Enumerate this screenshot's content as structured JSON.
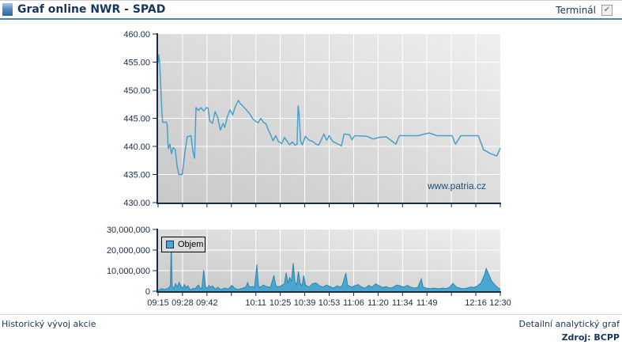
{
  "header": {
    "title": "Graf online NWR - SPAD",
    "terminal_label": "Terminál",
    "terminal_checked": true,
    "check_glyph": "✔"
  },
  "footer": {
    "left_link": "Historický vývoj akcie",
    "right_link": "Detailní analytický graf",
    "source_label": "Zdroj: BCPP"
  },
  "colors": {
    "navy_text": "#17365d",
    "axis": "#1b2b45",
    "header_rule": "#4e87ae",
    "price_line": "#4ba0c8",
    "volume_fill": "#4aa5cf",
    "volume_stroke": "#2d86b2",
    "plot_bg_dark": "#c8c8c8",
    "plot_bg_light": "#efefef",
    "watermark_color": "#1e4d75",
    "gridline": "#ffffff"
  },
  "chart_data": [
    {
      "type": "line",
      "title": "",
      "xlim": [
        0,
        195
      ],
      "ylim": [
        430,
        460
      ],
      "x_tick_count": 15,
      "y_ticks": [
        460,
        455,
        450,
        445,
        440,
        435,
        430
      ],
      "y_tick_labels": [
        "460.00",
        "455.00",
        "450.00",
        "445.00",
        "440.00",
        "435.00",
        "430.00"
      ],
      "grid": true,
      "legend_position": "none",
      "watermark": "www.patria.cz",
      "series": [
        {
          "color": "#4ba0c8",
          "points": [
            [
              0,
              454.8
            ],
            [
              0.4,
              456.3
            ],
            [
              0.9,
              455.0
            ],
            [
              1.4,
              451.5
            ],
            [
              2.2,
              446.0
            ],
            [
              2.6,
              444.3
            ],
            [
              4.8,
              444.3
            ],
            [
              5.2,
              443.9
            ],
            [
              5.8,
              439.6
            ],
            [
              6.8,
              440.4
            ],
            [
              7.6,
              438.7
            ],
            [
              8.6,
              439.8
            ],
            [
              9.8,
              439.4
            ],
            [
              10.8,
              436.6
            ],
            [
              11.8,
              435.0
            ],
            [
              13.8,
              435.0
            ],
            [
              15.2,
              438.8
            ],
            [
              16.6,
              441.7
            ],
            [
              18.8,
              441.9
            ],
            [
              19.8,
              439.2
            ],
            [
              20.8,
              437.9
            ],
            [
              21.6,
              446.9
            ],
            [
              23,
              446.4
            ],
            [
              24.5,
              446.9
            ],
            [
              26,
              446.3
            ],
            [
              27.5,
              446.9
            ],
            [
              28.5,
              446.8
            ],
            [
              29.5,
              444.5
            ],
            [
              31,
              444.1
            ],
            [
              32.5,
              446.2
            ],
            [
              34,
              445.1
            ],
            [
              35.5,
              442.9
            ],
            [
              37,
              444.1
            ],
            [
              38,
              443.4
            ],
            [
              39.5,
              445.3
            ],
            [
              41,
              446.5
            ],
            [
              42.5,
              445.6
            ],
            [
              44,
              447.1
            ],
            [
              45.8,
              448.2
            ],
            [
              46.8,
              447.6
            ],
            [
              48,
              447.3
            ],
            [
              50,
              446.6
            ],
            [
              52,
              445.9
            ],
            [
              54,
              444.9
            ],
            [
              55.5,
              444.5
            ],
            [
              57,
              444.2
            ],
            [
              58.5,
              445.0
            ],
            [
              60,
              444.3
            ],
            [
              61.5,
              444.0
            ],
            [
              63,
              442.8
            ],
            [
              64,
              442.2
            ],
            [
              65.5,
              441.0
            ],
            [
              67,
              441.9
            ],
            [
              68.5,
              440.9
            ],
            [
              70.5,
              440.5
            ],
            [
              72,
              441.6
            ],
            [
              73.5,
              440.9
            ],
            [
              75,
              440.3
            ],
            [
              76.5,
              440.8
            ],
            [
              78,
              440.2
            ],
            [
              79.2,
              440.4
            ],
            [
              79.8,
              447.2
            ],
            [
              80.4,
              445.8
            ],
            [
              81.2,
              440.9
            ],
            [
              82.2,
              440.3
            ],
            [
              84,
              441.8
            ],
            [
              86,
              441.1
            ],
            [
              88,
              440.9
            ],
            [
              90,
              440.4
            ],
            [
              91.5,
              440.2
            ],
            [
              93,
              441.2
            ],
            [
              94.5,
              442.2
            ],
            [
              96,
              441.1
            ],
            [
              97.5,
              441.9
            ],
            [
              99.5,
              440.9
            ],
            [
              102,
              440.5
            ],
            [
              104.5,
              440.1
            ],
            [
              106,
              442.2
            ],
            [
              109,
              442.1
            ],
            [
              110.5,
              441.2
            ],
            [
              112,
              441.9
            ],
            [
              119,
              441.8
            ],
            [
              122.5,
              441.3
            ],
            [
              126,
              441.6
            ],
            [
              130,
              441.7
            ],
            [
              135.5,
              440.4
            ],
            [
              137.5,
              441.9
            ],
            [
              148,
              441.9
            ],
            [
              154.5,
              442.4
            ],
            [
              159,
              441.9
            ],
            [
              167.5,
              441.9
            ],
            [
              169.5,
              440.4
            ],
            [
              172.5,
              441.9
            ],
            [
              182.5,
              441.9
            ],
            [
              185.5,
              439.4
            ],
            [
              189.5,
              438.7
            ],
            [
              193,
              438.3
            ],
            [
              195,
              439.7
            ]
          ]
        }
      ]
    },
    {
      "type": "area",
      "title": "",
      "xlim": [
        0,
        195
      ],
      "ylim": [
        0,
        30000000
      ],
      "x_tick_labels": [
        "09:15",
        "09:28",
        "09:42",
        "",
        "10:11",
        "10:25",
        "10:39",
        "10:53",
        "11:06",
        "11:20",
        "11:34",
        "11:49",
        "",
        "12:16",
        "12:30"
      ],
      "y_ticks": [
        30000000,
        20000000,
        10000000,
        0
      ],
      "y_tick_labels": [
        "30,000,000",
        "20,000,000",
        "10,000,000",
        "0"
      ],
      "grid": true,
      "legend_position": "top-left",
      "series": [
        {
          "name": "Objem",
          "color": "#4aa5cf",
          "stroke": "#2d86b2",
          "points": [
            [
              0,
              300000
            ],
            [
              2,
              1200000
            ],
            [
              4,
              800000
            ],
            [
              6,
              1500000
            ],
            [
              7,
              2600000
            ],
            [
              7.5,
              23300000
            ],
            [
              8,
              2600000
            ],
            [
              9,
              1200000
            ],
            [
              10,
              3600000
            ],
            [
              11,
              2000000
            ],
            [
              12,
              4300000
            ],
            [
              13,
              2500000
            ],
            [
              14,
              1500000
            ],
            [
              15,
              3200000
            ],
            [
              16,
              1800000
            ],
            [
              17,
              2600000
            ],
            [
              18,
              1000000
            ],
            [
              19,
              600000
            ],
            [
              20,
              1500000
            ],
            [
              21,
              1000000
            ],
            [
              22,
              2200000
            ],
            [
              23,
              3000000
            ],
            [
              24,
              1500000
            ],
            [
              25,
              1300000
            ],
            [
              26,
              10300000
            ],
            [
              27,
              2000000
            ],
            [
              28,
              1500000
            ],
            [
              29,
              2800000
            ],
            [
              30,
              1800000
            ],
            [
              31,
              2600000
            ],
            [
              32,
              1500000
            ],
            [
              33,
              1000000
            ],
            [
              34,
              2000000
            ],
            [
              35,
              1200000
            ],
            [
              36,
              800000
            ],
            [
              38,
              1500000
            ],
            [
              40,
              1000000
            ],
            [
              42,
              2800000
            ],
            [
              44,
              1200000
            ],
            [
              46,
              900000
            ],
            [
              48,
              1400000
            ],
            [
              50,
              2000000
            ],
            [
              51,
              4200000
            ],
            [
              52,
              2000000
            ],
            [
              54,
              2300000
            ],
            [
              55,
              1600000
            ],
            [
              56.3,
              13000000
            ],
            [
              57.2,
              2500000
            ],
            [
              58,
              1800000
            ],
            [
              60,
              3000000
            ],
            [
              62,
              2200000
            ],
            [
              64,
              1800000
            ],
            [
              66,
              7600000
            ],
            [
              67,
              3000000
            ],
            [
              68,
              2000000
            ],
            [
              70,
              2600000
            ],
            [
              72,
              3600000
            ],
            [
              73,
              9000000
            ],
            [
              74,
              4000000
            ],
            [
              75,
              6600000
            ],
            [
              76,
              5000000
            ],
            [
              77,
              13600000
            ],
            [
              78,
              4500000
            ],
            [
              79,
              3000000
            ],
            [
              80,
              9600000
            ],
            [
              81,
              3600000
            ],
            [
              82,
              2600000
            ],
            [
              83,
              7600000
            ],
            [
              84,
              3000000
            ],
            [
              86,
              2000000
            ],
            [
              88,
              3600000
            ],
            [
              90,
              4000000
            ],
            [
              92,
              2600000
            ],
            [
              94,
              2000000
            ],
            [
              96,
              3000000
            ],
            [
              98,
              2200000
            ],
            [
              100,
              1500000
            ],
            [
              102,
              2600000
            ],
            [
              104,
              2000000
            ],
            [
              105,
              3000000
            ],
            [
              107,
              8800000
            ],
            [
              108,
              3000000
            ],
            [
              110,
              2000000
            ],
            [
              112,
              2600000
            ],
            [
              114,
              3200000
            ],
            [
              116,
              2000000
            ],
            [
              118,
              1500000
            ],
            [
              120,
              2800000
            ],
            [
              122,
              2000000
            ],
            [
              124,
              3600000
            ],
            [
              126,
              2600000
            ],
            [
              128,
              1800000
            ],
            [
              130,
              2200000
            ],
            [
              132,
              1500000
            ],
            [
              134,
              2000000
            ],
            [
              136,
              3000000
            ],
            [
              138,
              2600000
            ],
            [
              140,
              2000000
            ],
            [
              142,
              2800000
            ],
            [
              144,
              2000000
            ],
            [
              146,
              1500000
            ],
            [
              148,
              1800000
            ],
            [
              150,
              6000000
            ],
            [
              151,
              2000000
            ],
            [
              153,
              1500000
            ],
            [
              155,
              1200000
            ],
            [
              157,
              1500000
            ],
            [
              160,
              1200000
            ],
            [
              162,
              1500000
            ],
            [
              164,
              1300000
            ],
            [
              166,
              1800000
            ],
            [
              168,
              3800000
            ],
            [
              170,
              2000000
            ],
            [
              172,
              1500000
            ],
            [
              174,
              1200000
            ],
            [
              176,
              1500000
            ],
            [
              178,
              2000000
            ],
            [
              180,
              1800000
            ],
            [
              182,
              2600000
            ],
            [
              184,
              4000000
            ],
            [
              186,
              8000000
            ],
            [
              187,
              11000000
            ],
            [
              188,
              9000000
            ],
            [
              190,
              5000000
            ],
            [
              192,
              3000000
            ],
            [
              194,
              1500000
            ],
            [
              195,
              1000000
            ]
          ]
        }
      ]
    }
  ]
}
